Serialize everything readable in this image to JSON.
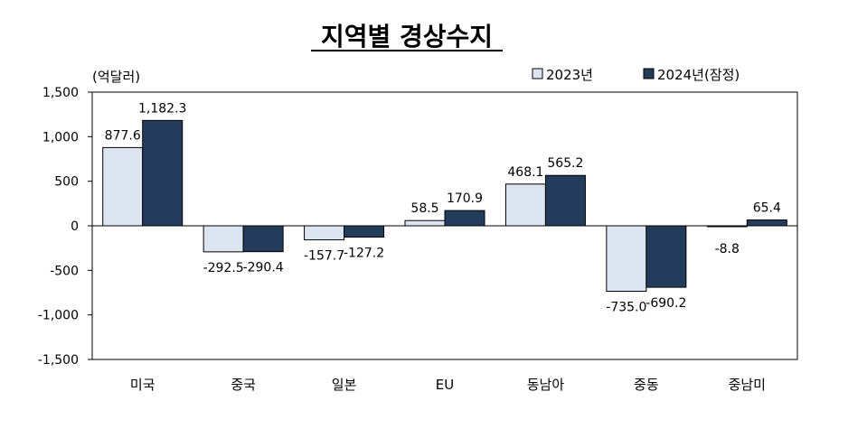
{
  "chart_data": {
    "type": "bar",
    "title": "지역별 경상수지",
    "unit_label": "(억달러)",
    "categories": [
      "미국",
      "중국",
      "일본",
      "EU",
      "동남아",
      "중동",
      "중남미"
    ],
    "series": [
      {
        "name": "2023년",
        "values": [
          877.6,
          -292.5,
          -157.7,
          58.5,
          468.1,
          -735.0,
          -8.8
        ],
        "labels": [
          "877.6",
          "-292.5",
          "-157.7",
          "58.5",
          "468.1",
          "-735.0",
          "-8.8"
        ],
        "color": "#dbe4f0"
      },
      {
        "name": "2024년(잠정)",
        "values": [
          1182.3,
          -290.4,
          -127.2,
          170.9,
          565.2,
          -690.2,
          65.4
        ],
        "labels": [
          "1,182.3",
          "-290.4",
          "-127.2",
          "170.9",
          "565.2",
          "-690.2",
          "65.4"
        ],
        "color": "#243c5c"
      }
    ],
    "yticks": [
      "1,500",
      "1,000",
      "500",
      "0",
      "-500",
      "-1,000",
      "-1,500"
    ],
    "ytick_values": [
      1500,
      1000,
      500,
      0,
      -500,
      -1000,
      -1500
    ],
    "ylim": [
      -1500,
      1500
    ],
    "legend_position": "top-right",
    "grid": false
  }
}
